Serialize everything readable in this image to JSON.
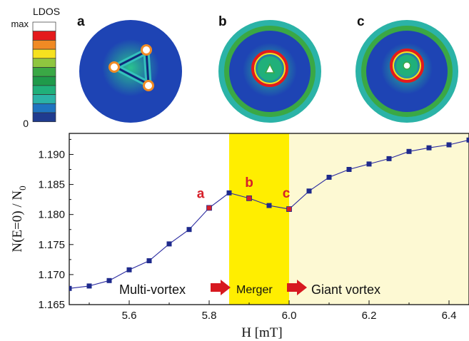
{
  "colorbar": {
    "title": "LDOS",
    "max_label": "max",
    "min_label": "0",
    "colors": [
      "#ffffff",
      "#e41a1c",
      "#f08a24",
      "#f6e11f",
      "#8fc63f",
      "#3aa845",
      "#1f9a4a",
      "#20b07a",
      "#2bb3a7",
      "#1f74c0",
      "#1f3b8f"
    ]
  },
  "panels": [
    {
      "label": "a",
      "state": "multi-vortex"
    },
    {
      "label": "b",
      "state": "merger"
    },
    {
      "label": "c",
      "state": "giant-vortex"
    }
  ],
  "colors": {
    "line": "#2a2aa0",
    "marker": "#1e2a8c",
    "highlight_marker": "#d6202a",
    "merger_band": "#ffee00",
    "giant_band": "#fdf9d3",
    "disk_background": "#1e44b4",
    "arrow": "#d71920",
    "point_label": "#d6202a"
  },
  "chart_data": {
    "type": "line",
    "x": [
      5.45,
      5.5,
      5.55,
      5.6,
      5.65,
      5.7,
      5.75,
      5.8,
      5.85,
      5.9,
      5.95,
      6.0,
      6.05,
      6.1,
      6.15,
      6.2,
      6.25,
      6.3,
      6.35,
      6.4,
      6.45
    ],
    "y": [
      1.1677,
      1.1681,
      1.169,
      1.1708,
      1.1723,
      1.1751,
      1.1775,
      1.1811,
      1.1836,
      1.1827,
      1.1815,
      1.1809,
      1.1839,
      1.1862,
      1.1875,
      1.1884,
      1.1893,
      1.1905,
      1.1911,
      1.1916,
      1.1924
    ],
    "xlabel": "H [mT]",
    "ylabel": "N(E=0) / N",
    "ylabel_sub": "0",
    "xlim": [
      5.45,
      6.45
    ],
    "ylim": [
      1.165,
      1.1935
    ],
    "xticks": [
      "5.6",
      "5.8",
      "6.0",
      "6.2",
      "6.4"
    ],
    "yticks": [
      "1.165",
      "1.170",
      "1.175",
      "1.180",
      "1.185",
      "1.190"
    ],
    "grid": false,
    "regions": [
      {
        "from": 5.85,
        "to": 6.0,
        "kind": "merger"
      },
      {
        "from": 6.0,
        "to": 6.45,
        "kind": "giant"
      }
    ],
    "highlighted": [
      {
        "label": "a",
        "x": 5.8
      },
      {
        "label": "b",
        "x": 5.9
      },
      {
        "label": "c",
        "x": 6.0
      }
    ],
    "annotations": {
      "multi": "Multi-vortex",
      "merger": "Merger",
      "giant": "Giant vortex"
    }
  }
}
